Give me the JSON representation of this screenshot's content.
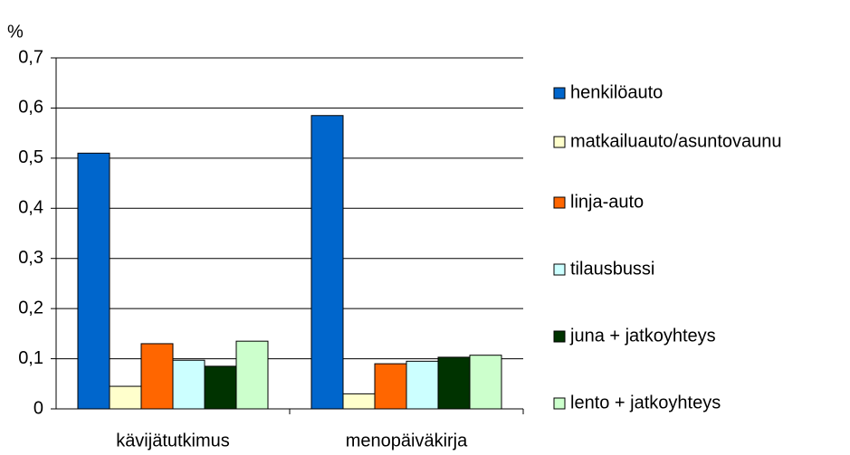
{
  "chart_data": {
    "type": "bar",
    "y_label": "%",
    "categories": [
      "kävijätutkimus",
      "menopäiväkirja"
    ],
    "series": [
      {
        "name": "henkilöauto",
        "color": "#0066cc",
        "values": [
          0.51,
          0.585
        ]
      },
      {
        "name": "matkailuauto/asuntovaunu",
        "color": "#ffffcc",
        "values": [
          0.045,
          0.03
        ]
      },
      {
        "name": "linja-auto",
        "color": "#ff6600",
        "values": [
          0.13,
          0.09
        ]
      },
      {
        "name": "tilausbussi",
        "color": "#ccffff",
        "values": [
          0.097,
          0.095
        ]
      },
      {
        "name": "juna + jatkoyhteys",
        "color": "#003300",
        "values": [
          0.085,
          0.103
        ]
      },
      {
        "name": "lento + jatkoyhteys",
        "color": "#ccffcc",
        "values": [
          0.135,
          0.107
        ]
      }
    ],
    "ylim": [
      0,
      0.7
    ],
    "yticks": [
      0,
      {
        "value": 0.1,
        "label": "0,1"
      },
      {
        "value": 0.2,
        "label": "0,2"
      },
      {
        "value": 0.3,
        "label": "0,3"
      },
      {
        "value": 0.4,
        "label": "0,4"
      },
      {
        "value": 0.5,
        "label": "0,5"
      },
      {
        "value": 0.6,
        "label": "0,6"
      },
      {
        "value": 0.7,
        "label": "0,7"
      }
    ],
    "grid": true,
    "legend": "right"
  }
}
